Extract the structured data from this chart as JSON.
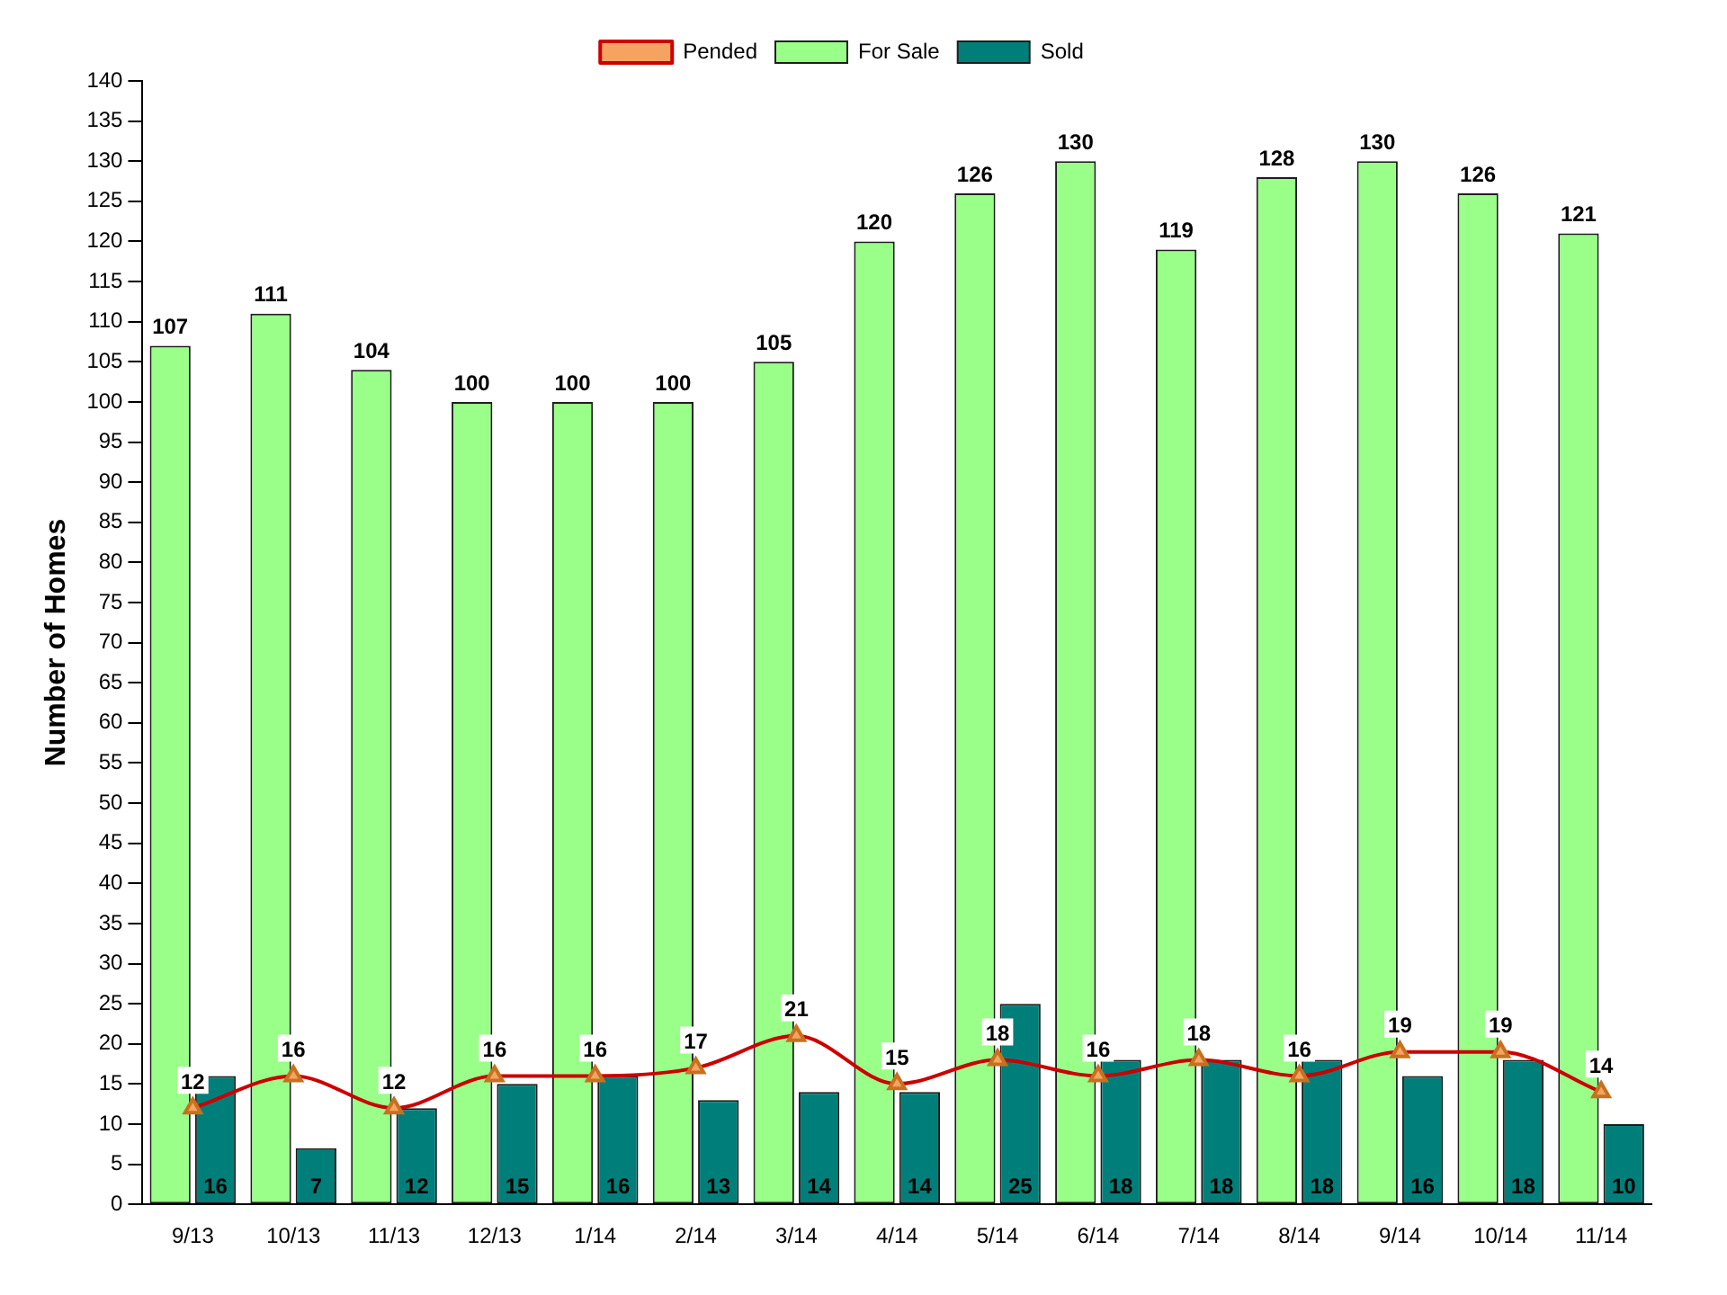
{
  "chart_data": {
    "type": "bar",
    "ylabel": "Number of Homes",
    "categories": [
      "9/13",
      "10/13",
      "11/13",
      "12/13",
      "1/14",
      "2/14",
      "3/14",
      "4/14",
      "5/14",
      "6/14",
      "7/14",
      "8/14",
      "9/14",
      "10/14",
      "11/14"
    ],
    "series": [
      {
        "name": "For Sale",
        "color": "#99ff88",
        "values": [
          107,
          111,
          104,
          100,
          100,
          100,
          105,
          120,
          126,
          130,
          119,
          128,
          130,
          126,
          121
        ]
      },
      {
        "name": "Sold",
        "color": "#007f7a",
        "values": [
          16,
          7,
          12,
          15,
          16,
          13,
          14,
          14,
          25,
          18,
          18,
          18,
          16,
          18,
          10
        ]
      },
      {
        "name": "Pended",
        "type": "line",
        "color": "#cc0000",
        "marker": "triangle",
        "values": [
          12,
          16,
          12,
          16,
          16,
          17,
          21,
          15,
          18,
          16,
          18,
          16,
          19,
          19,
          14
        ]
      }
    ],
    "ylim": [
      0,
      140
    ],
    "yticks": [
      0,
      5,
      10,
      15,
      20,
      25,
      30,
      35,
      40,
      45,
      50,
      55,
      60,
      65,
      70,
      75,
      80,
      85,
      90,
      95,
      100,
      105,
      110,
      115,
      120,
      125,
      130,
      135,
      140
    ],
    "grid": false,
    "legend": "top",
    "data_labels": true
  }
}
